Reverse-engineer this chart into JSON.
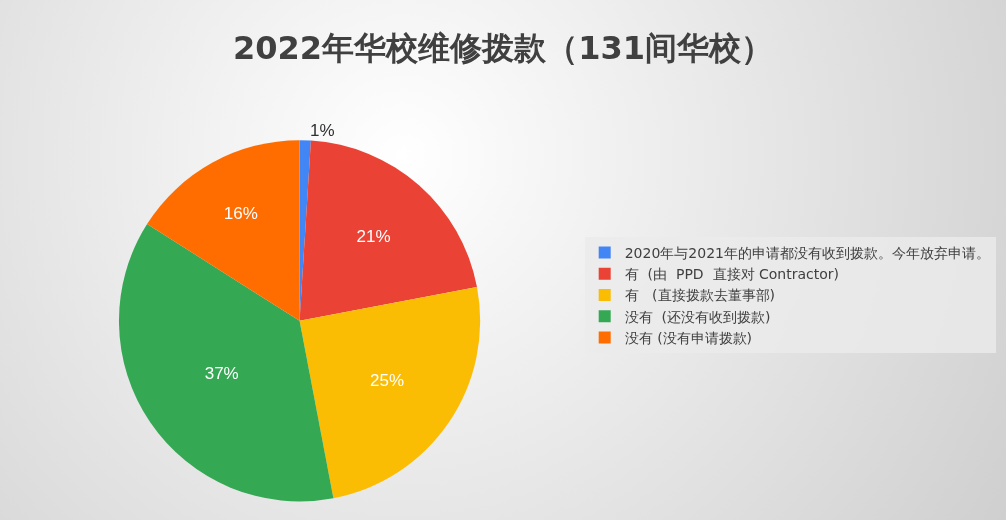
{
  "chart_data": {
    "type": "pie",
    "title": "2022年华校维修拨款（131间华校）",
    "categories": [
      "2020年与2021年的申请都没有收到拨款。今年放弃申请。",
      "有  (由  PPD  直接对 Contractor)",
      "有   (直接拨款去董事部)",
      "没有  (还没有收到拨款)",
      "没有 (没有申请拨款)"
    ],
    "values": [
      1,
      21,
      25,
      37,
      16
    ],
    "colors": [
      "#4285f4",
      "#ea4335",
      "#fbbc04",
      "#34a853",
      "#ff6d01"
    ],
    "value_labels": [
      "1%",
      "21%",
      "25%",
      "37%",
      "16%"
    ],
    "legend": "right"
  }
}
